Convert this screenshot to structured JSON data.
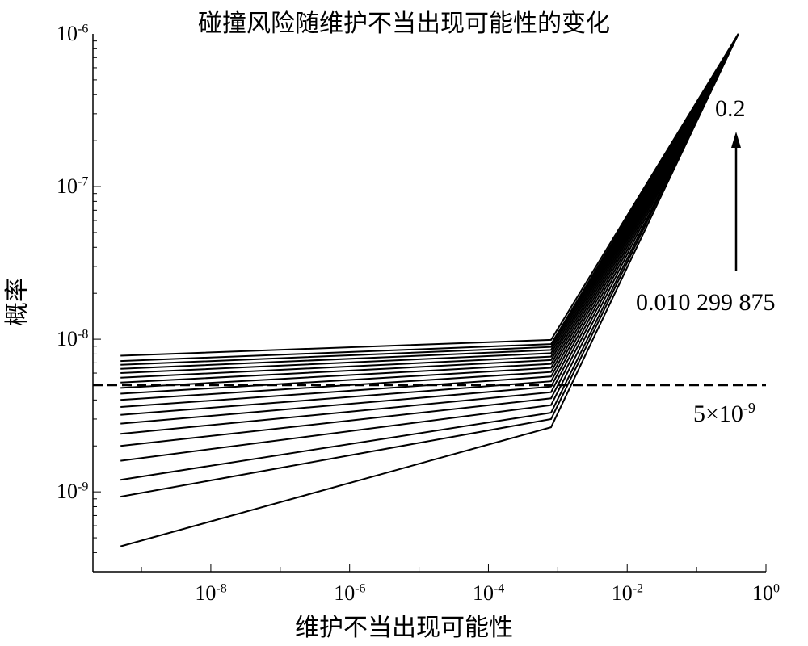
{
  "chart_data": {
    "type": "line",
    "title": "碰撞风险随维护不当出现可能性的变化",
    "xlabel": "维护不当出现可能性",
    "ylabel": "概率",
    "x_scale": "log",
    "y_scale": "log",
    "xlim": [
      2e-10,
      1
    ],
    "ylim": [
      3e-10,
      1e-06
    ],
    "x_ticks": [
      {
        "base": "10",
        "exp": "-8",
        "value": 1e-08
      },
      {
        "base": "10",
        "exp": "-6",
        "value": 1e-06
      },
      {
        "base": "10",
        "exp": "-4",
        "value": 0.0001
      },
      {
        "base": "10",
        "exp": "-2",
        "value": 0.01
      },
      {
        "base": "10",
        "exp": "0",
        "value": 1
      }
    ],
    "y_ticks": [
      {
        "base": "10",
        "exp": "-9",
        "value": 1e-09
      },
      {
        "base": "10",
        "exp": "-8",
        "value": 1e-08
      },
      {
        "base": "10",
        "exp": "-7",
        "value": 1e-07
      },
      {
        "base": "10",
        "exp": "-6",
        "value": 1e-06
      }
    ],
    "threshold": {
      "value": 5e-09,
      "label_base": "5×10",
      "label_exp": "-9",
      "style": "dashed"
    },
    "annotation_top": "0.2",
    "annotation_bottom": "0.010 299 875",
    "series_x": [
      5e-10,
      0.0008,
      0.4
    ],
    "series": [
      {
        "values": [
          4.4e-10,
          2.65e-09,
          1e-06
        ]
      },
      {
        "values": [
          9.3e-10,
          3e-09,
          1e-06
        ]
      },
      {
        "values": [
          1.2e-09,
          3.3e-09,
          1e-06
        ]
      },
      {
        "values": [
          1.6e-09,
          3.7e-09,
          1e-06
        ]
      },
      {
        "values": [
          2e-09,
          4.1e-09,
          1e-06
        ]
      },
      {
        "values": [
          2.4e-09,
          4.5e-09,
          1e-06
        ]
      },
      {
        "values": [
          2.8e-09,
          4.9e-09,
          1e-06
        ]
      },
      {
        "values": [
          3.2e-09,
          5.3e-09,
          1e-06
        ]
      },
      {
        "values": [
          3.6e-09,
          5.7e-09,
          1e-06
        ]
      },
      {
        "values": [
          4e-09,
          6.1e-09,
          1e-06
        ]
      },
      {
        "values": [
          4.4e-09,
          6.5e-09,
          1e-06
        ]
      },
      {
        "values": [
          4.8e-09,
          6.9e-09,
          1e-06
        ]
      },
      {
        "values": [
          5.2e-09,
          7.3e-09,
          1e-06
        ]
      },
      {
        "values": [
          5.6e-09,
          7.7e-09,
          1e-06
        ]
      },
      {
        "values": [
          6e-09,
          8.1e-09,
          1e-06
        ]
      },
      {
        "values": [
          6.4e-09,
          8.5e-09,
          1e-06
        ]
      },
      {
        "values": [
          6.8e-09,
          8.9e-09,
          1e-06
        ]
      },
      {
        "values": [
          7.2e-09,
          9.3e-09,
          1e-06
        ]
      },
      {
        "values": [
          7.8e-09,
          9.9e-09,
          1e-06
        ]
      }
    ]
  }
}
